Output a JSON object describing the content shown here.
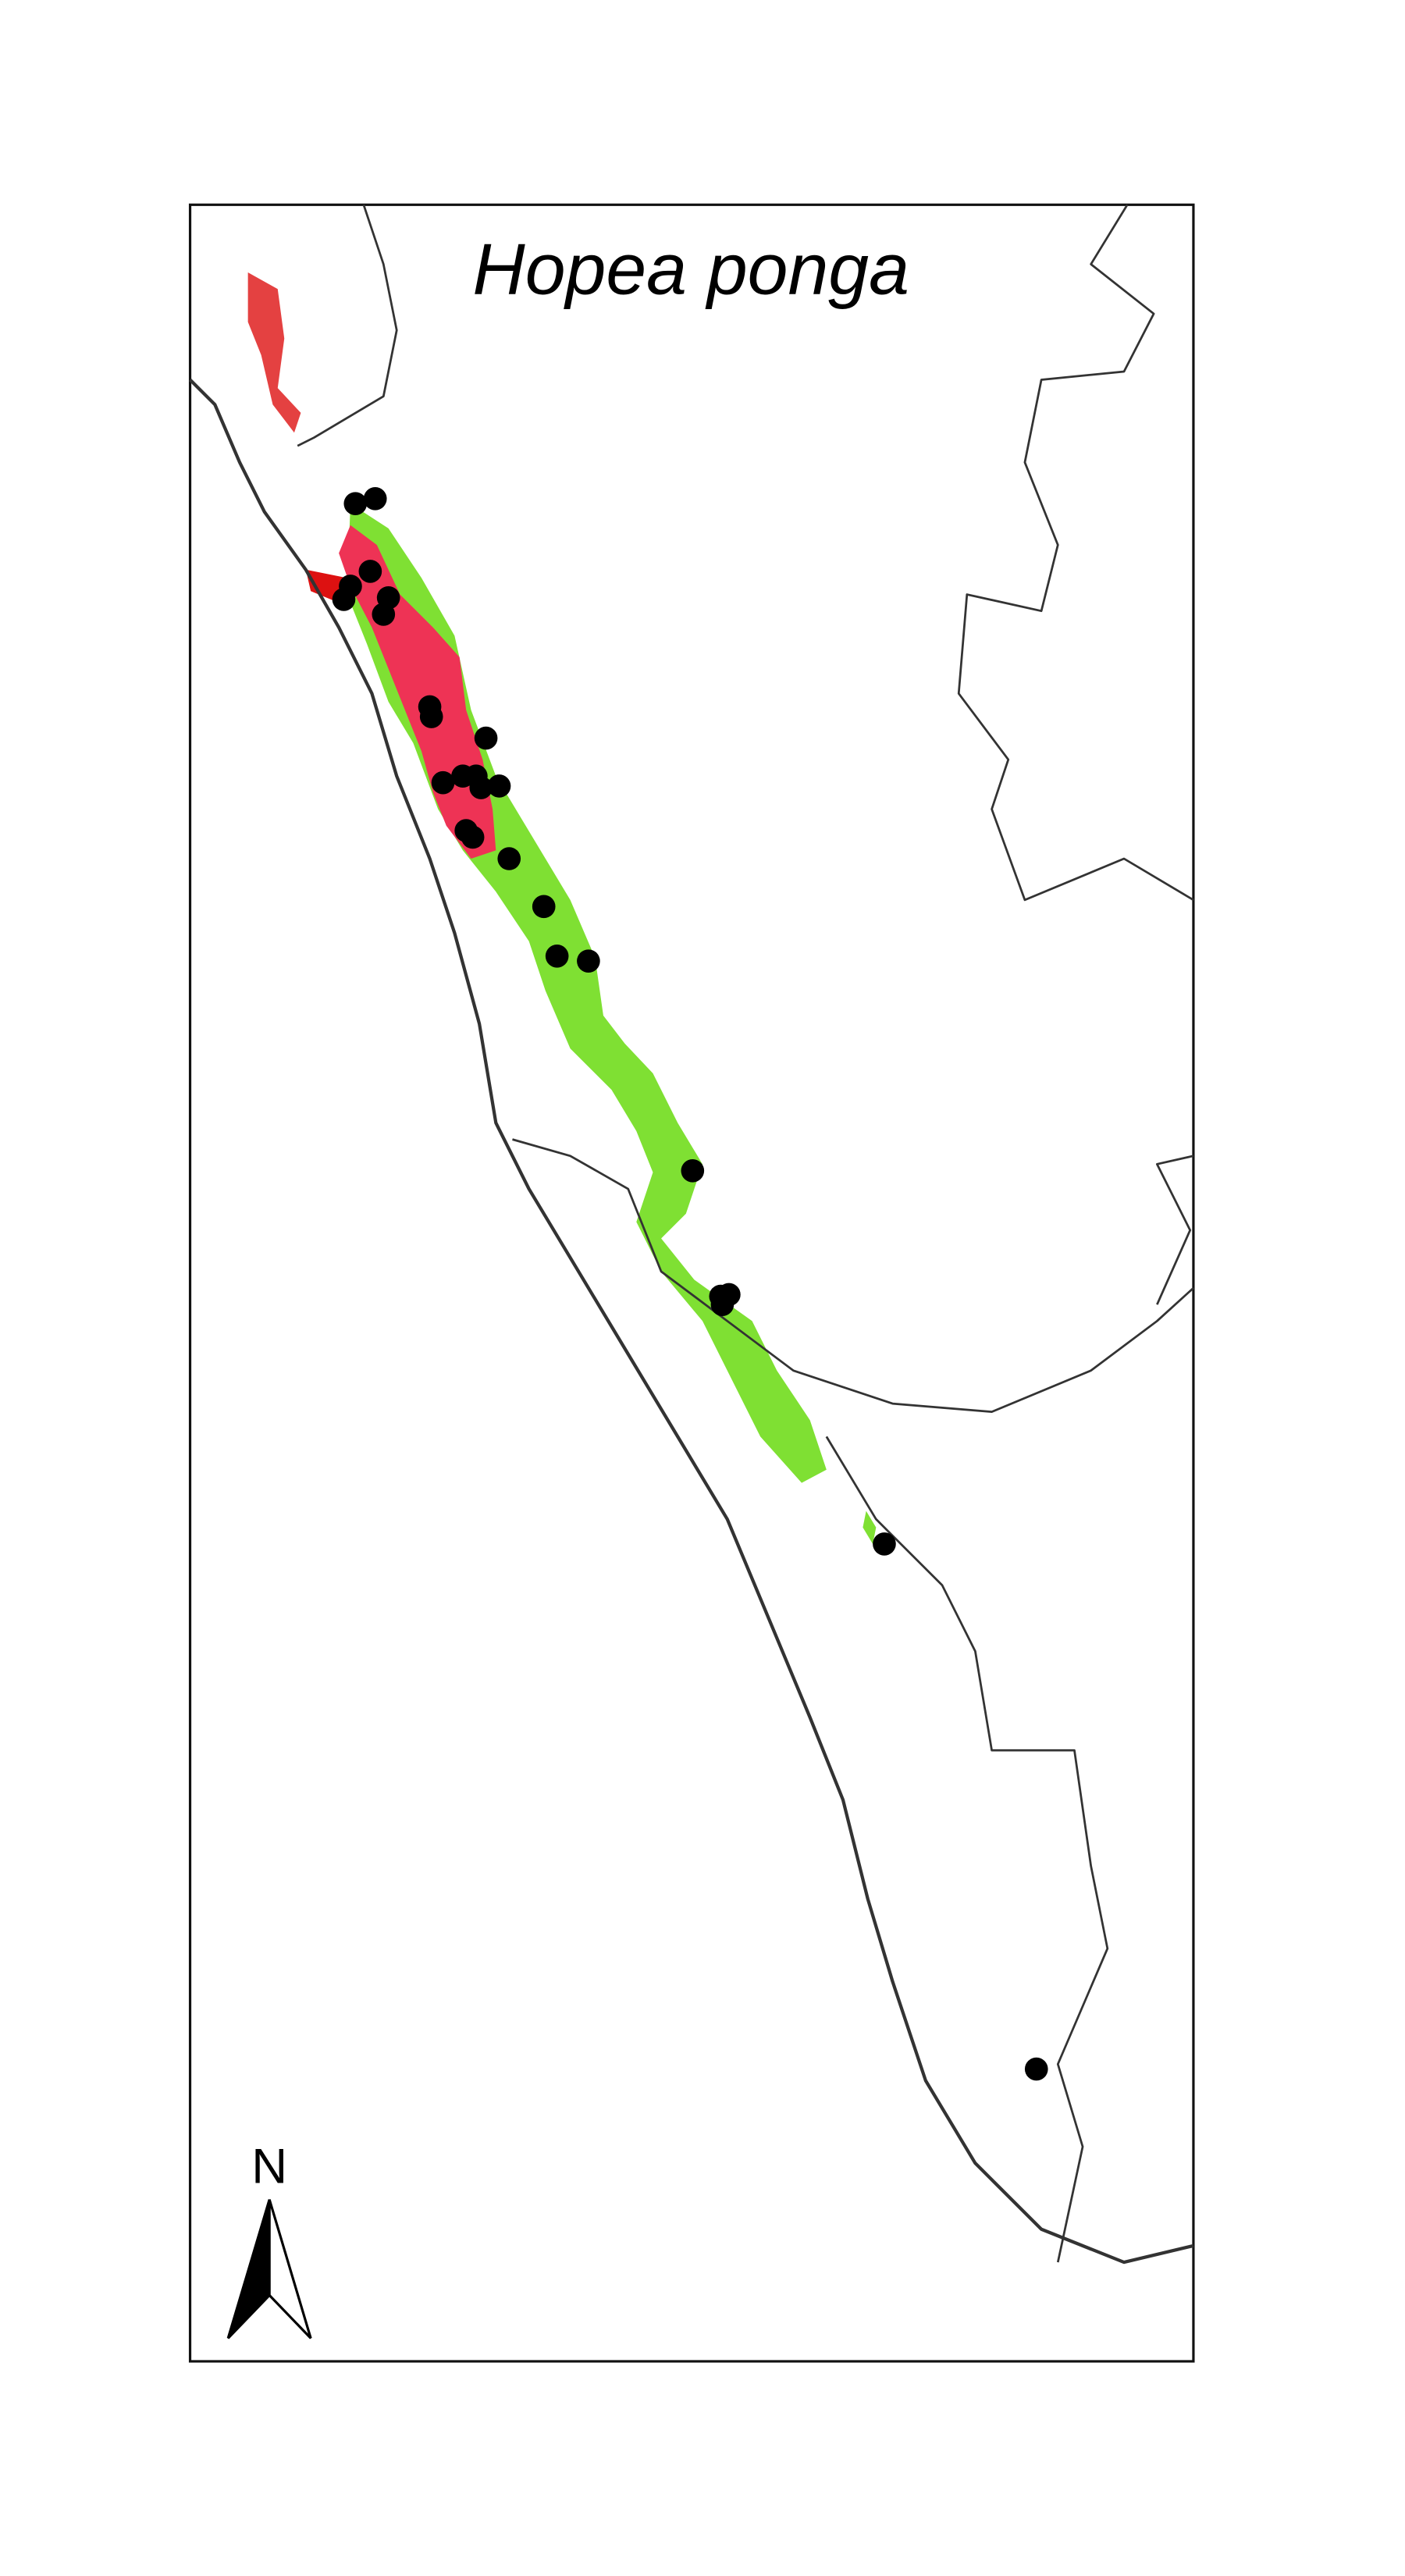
{
  "map": {
    "title": "Hopea ponga",
    "north_label": "N"
  }
}
